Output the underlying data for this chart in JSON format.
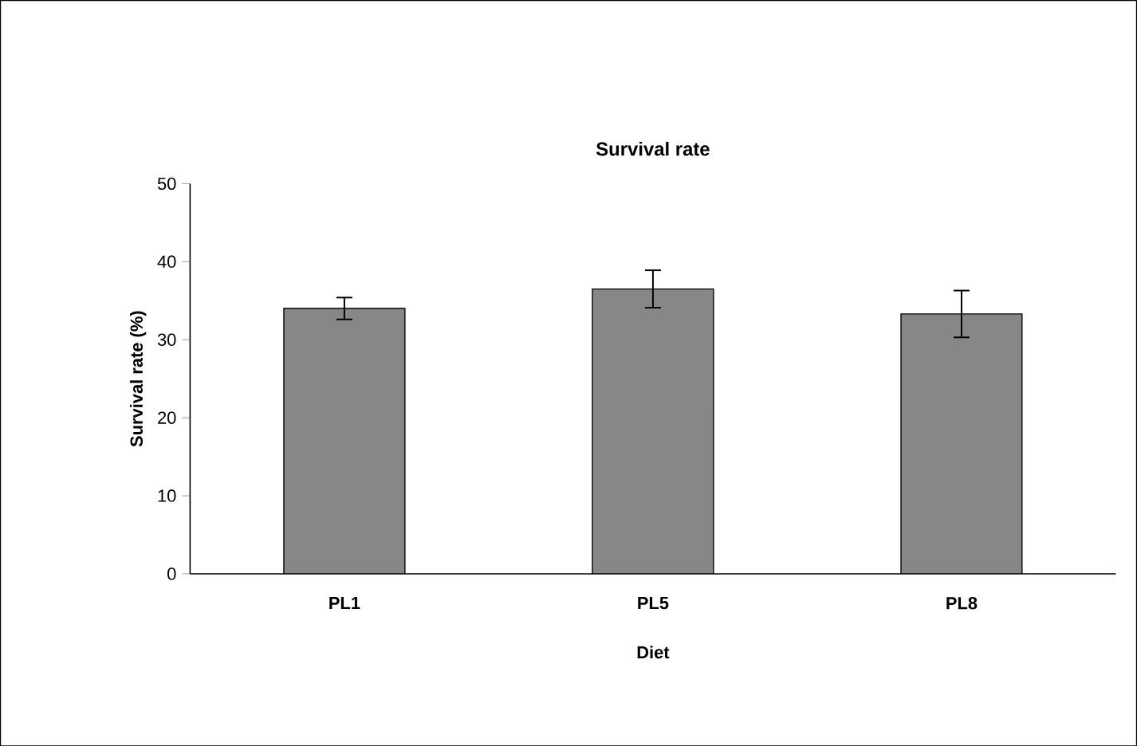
{
  "chart_data": {
    "type": "bar",
    "title": "Survival rate",
    "xlabel": "Diet",
    "ylabel": "Survival rate  (%)",
    "categories": [
      "PL1",
      "PL5",
      "PL8"
    ],
    "values": [
      34.0,
      36.5,
      33.3
    ],
    "errors": [
      1.4,
      2.4,
      3.0
    ],
    "color": "#878787",
    "ylim": [
      0,
      50
    ],
    "yticks": [
      0,
      10,
      20,
      30,
      40,
      50
    ]
  }
}
